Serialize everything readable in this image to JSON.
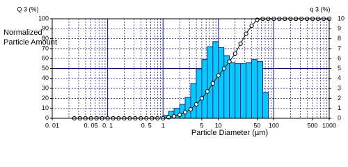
{
  "chart_data": {
    "type": "histogram",
    "y_title_left": "Q 3 (%)",
    "y_title_right": "q 3 (%)",
    "y_label_lines": [
      "Normalized",
      "Particle Amount"
    ],
    "x_label": "Particle Diameter (µm)",
    "xscale": "log",
    "xlim": [
      0.01,
      1000
    ],
    "xticks": [
      {
        "value": 0.01,
        "label": "0. 01"
      },
      {
        "value": 0.05,
        "label": "0. 05"
      },
      {
        "value": 0.1,
        "label": "0. 1"
      },
      {
        "value": 0.5,
        "label": "0. 5"
      },
      1,
      5,
      10,
      50,
      100,
      500,
      1000
    ],
    "xminor": [
      0.02,
      0.03,
      0.04,
      0.06,
      0.07,
      0.08,
      0.09,
      0.2,
      0.3,
      0.4,
      0.6,
      0.7,
      0.8,
      0.9,
      2,
      3,
      4,
      6,
      7,
      8,
      9,
      20,
      30,
      40,
      60,
      70,
      80,
      90,
      200,
      300,
      400,
      600,
      700,
      800,
      900
    ],
    "ylim": [
      0,
      100
    ],
    "yticks": [
      0,
      10,
      20,
      30,
      40,
      50,
      60,
      70,
      80,
      90,
      100
    ],
    "y2lim": [
      0,
      10
    ],
    "y2ticks": [
      0,
      1,
      2,
      3,
      4,
      5,
      6,
      7,
      8,
      9,
      10
    ],
    "grid": true,
    "bins": [
      1,
      1.26,
      1.58,
      2,
      2.51,
      3.16,
      3.98,
      5.01,
      6.31,
      7.94,
      10,
      12.6,
      15.8,
      20,
      25.1,
      31.6,
      39.8,
      50.1,
      63.1,
      79.4
    ],
    "values": [
      0.3,
      0.7,
      1.0,
      1.4,
      2.1,
      3.5,
      4.9,
      5.9,
      7.2,
      7.7,
      7.1,
      6.3,
      5.6,
      5.5,
      5.5,
      5.6,
      5.9,
      5.7,
      2.6
    ],
    "axis": "y2",
    "color": "#00ccff",
    "cumulative": {
      "type": "line",
      "color": "#000000",
      "x": [
        0.0251,
        0.0316,
        0.0398,
        0.0501,
        0.0631,
        0.0794,
        0.1,
        0.126,
        0.158,
        0.2,
        0.251,
        0.316,
        0.398,
        0.501,
        0.631,
        0.794,
        1,
        1.26,
        1.58,
        2,
        2.51,
        3.16,
        3.98,
        5.01,
        6.31,
        7.94,
        10,
        12.6,
        15.8,
        20,
        25.1,
        31.6,
        39.8,
        50.1,
        63.1,
        79.4,
        100,
        126,
        158,
        200,
        251,
        316,
        398,
        501,
        631,
        794,
        1000
      ],
      "values": [
        0,
        0,
        0,
        0,
        0,
        0,
        0,
        0,
        0,
        0,
        0,
        0,
        0,
        0,
        0,
        0,
        0,
        1,
        2,
        3.5,
        6,
        9,
        14,
        20,
        27,
        35,
        43,
        50,
        57,
        65,
        75,
        85,
        93,
        99,
        100,
        100,
        100,
        100,
        100,
        100,
        100,
        100,
        100,
        100,
        100,
        100,
        100
      ]
    }
  }
}
